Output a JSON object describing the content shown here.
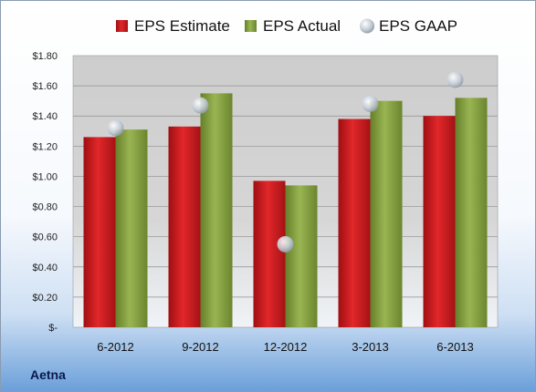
{
  "chart_data": {
    "type": "bar",
    "company": "Aetna",
    "categories": [
      "6-2012",
      "9-2012",
      "12-2012",
      "3-2013",
      "6-2013"
    ],
    "series": [
      {
        "name": "EPS Estimate",
        "kind": "bar",
        "color": "#c0181b",
        "values": [
          1.26,
          1.33,
          0.97,
          1.38,
          1.4
        ]
      },
      {
        "name": "EPS Actual",
        "kind": "bar",
        "color": "#7f9c3a",
        "values": [
          1.31,
          1.55,
          0.94,
          1.5,
          1.52
        ]
      },
      {
        "name": "EPS GAAP",
        "kind": "marker",
        "color": "#c9d3df",
        "values": [
          1.32,
          1.47,
          0.55,
          1.48,
          1.64
        ]
      }
    ],
    "ylim": [
      0,
      1.8
    ],
    "yticks": [
      {
        "value": 0,
        "label": "$-"
      },
      {
        "value": 0.2,
        "label": "$0.20"
      },
      {
        "value": 0.4,
        "label": "$0.40"
      },
      {
        "value": 0.6,
        "label": "$0.60"
      },
      {
        "value": 0.8,
        "label": "$0.80"
      },
      {
        "value": 1.0,
        "label": "$1.00"
      },
      {
        "value": 1.2,
        "label": "$1.20"
      },
      {
        "value": 1.4,
        "label": "$1.40"
      },
      {
        "value": 1.6,
        "label": "$1.60"
      },
      {
        "value": 1.8,
        "label": "$1.80"
      }
    ],
    "grid": true,
    "legend": "top"
  }
}
